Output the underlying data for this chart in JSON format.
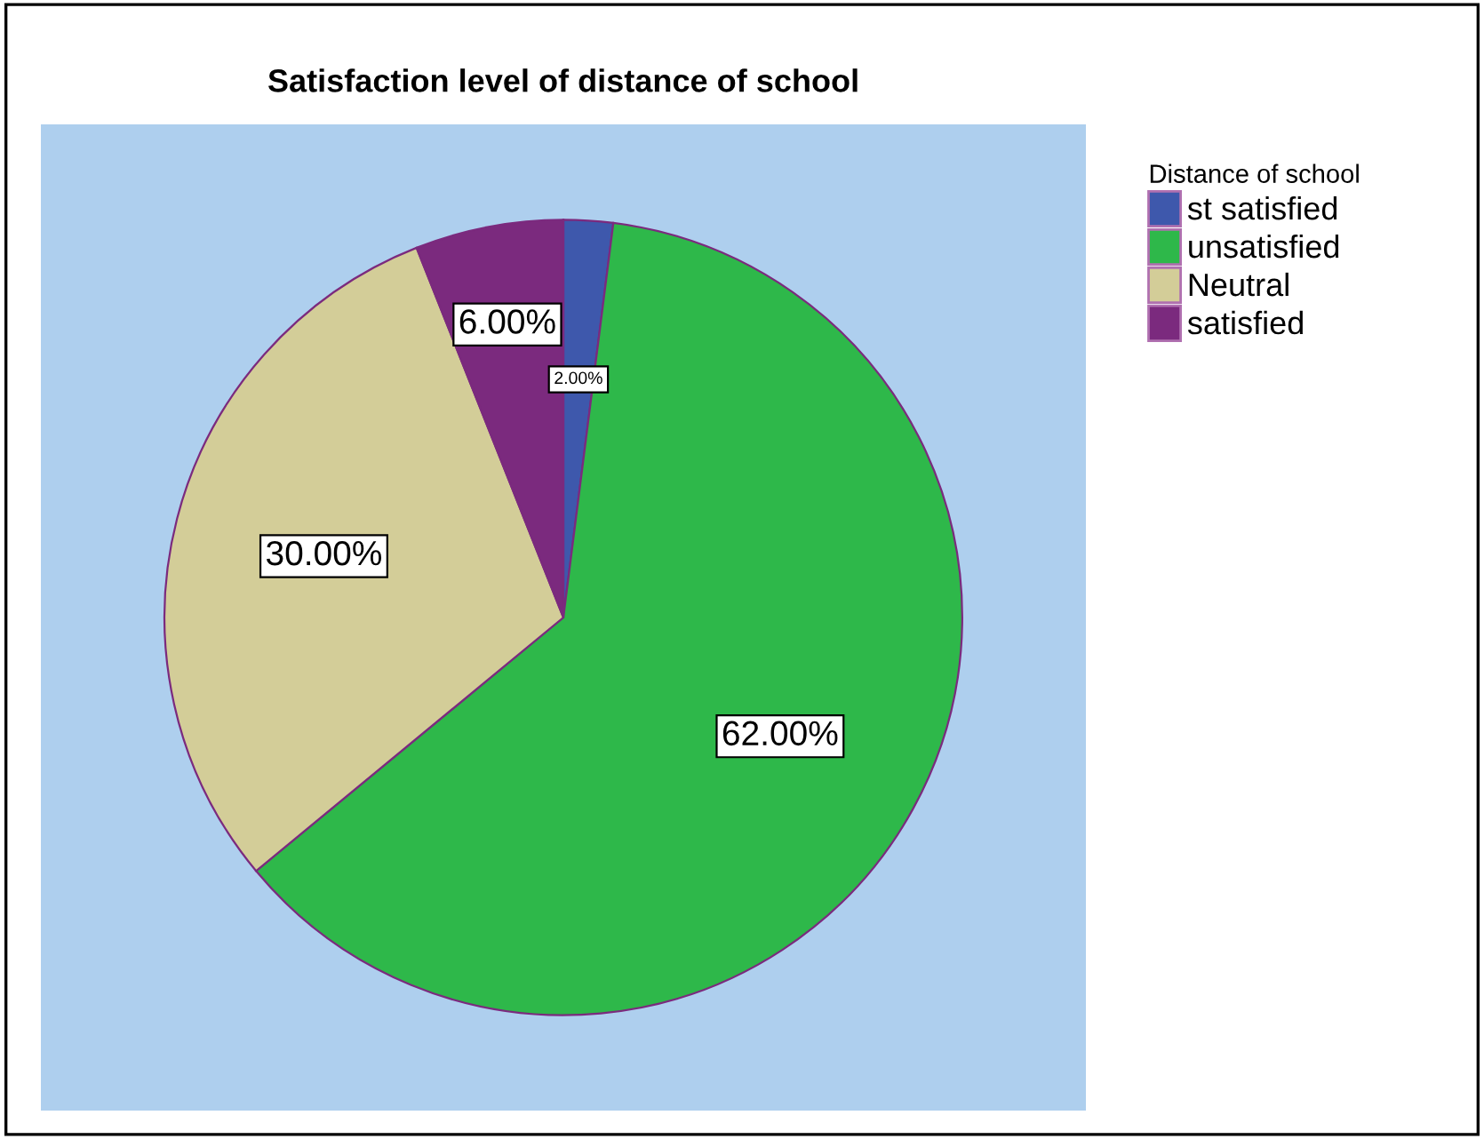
{
  "chart_data": {
    "type": "pie",
    "title": "Satisfaction level of distance of school",
    "legend_title": "Distance of school",
    "categories": [
      "st satisfied",
      "unsatisfied",
      "Neutral",
      "satisfied"
    ],
    "values": [
      2,
      62,
      30,
      6
    ],
    "colors": [
      "#3e58ac",
      "#2eb84a",
      "#d3cd98",
      "#7b2a7e"
    ],
    "value_labels": [
      "2.00%",
      "62.00%",
      "30.00%",
      "6.00%"
    ],
    "legend": "right"
  }
}
